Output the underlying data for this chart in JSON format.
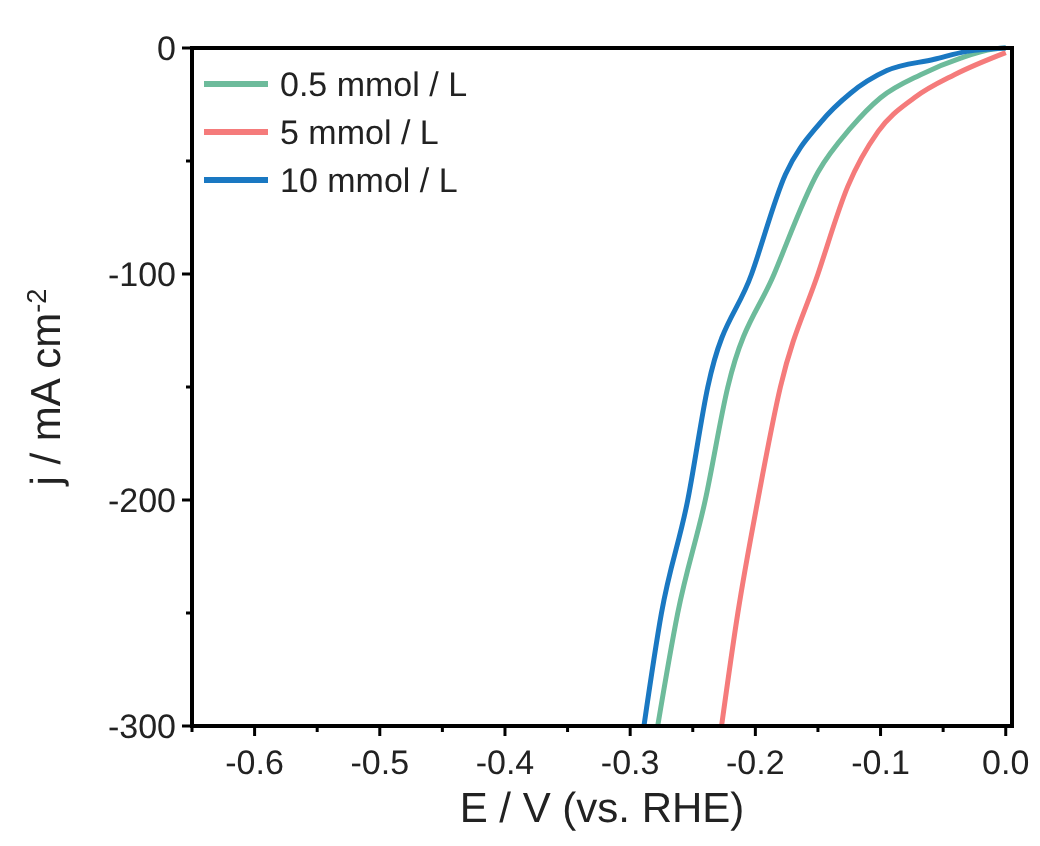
{
  "chart_data": {
    "type": "line",
    "xlabel": "E / V (vs. RHE)",
    "ylabel": "j / mA cm$^{-2}$",
    "xlim": [
      -0.65,
      0.005
    ],
    "ylim": [
      -300,
      0
    ],
    "xticks": [
      -0.6,
      -0.5,
      -0.4,
      -0.3,
      -0.2,
      -0.1,
      {
        "value": 0,
        "label": "0.0"
      },
      {
        "value": -0.65,
        "label": null
      },
      {
        "value": -0.55,
        "label": null
      },
      {
        "value": -0.45,
        "label": null
      },
      {
        "value": -0.35,
        "label": null
      },
      {
        "value": -0.25,
        "label": null
      },
      {
        "value": -0.15,
        "label": null
      },
      {
        "value": -0.05,
        "label": null
      }
    ],
    "yticks": [
      -300,
      -200,
      -100,
      0,
      {
        "value": -250,
        "label": null
      },
      {
        "value": -150,
        "label": null
      },
      {
        "value": -50,
        "label": null
      }
    ],
    "legend": "top left",
    "grid": false,
    "line_style": "solid",
    "marker": "none",
    "series": [
      {
        "name": "0.5 mmol / L",
        "color": "#6dbb9b",
        "x": [
          -0.278,
          -0.262,
          -0.24,
          -0.222,
          -0.185,
          -0.15,
          -0.124,
          -0.1,
          -0.068,
          -0.036,
          -0.01,
          0
        ],
        "values": [
          -300,
          -250,
          -200,
          -150,
          -100,
          -55,
          -35.5,
          -22,
          -11.8,
          -4.5,
          -0.5,
          0
        ]
      },
      {
        "name": "5 mmol / L",
        "color": "#f57b7b",
        "x": [
          -0.227,
          -0.214,
          -0.198,
          -0.18,
          -0.15,
          -0.126,
          -0.102,
          -0.073,
          -0.041,
          0
        ],
        "values": [
          -300,
          -250,
          -200,
          -150,
          -100,
          -61,
          -37,
          -22,
          -11.8,
          -2
        ]
      },
      {
        "name": "10 mmol / L",
        "color": "#1a78c2",
        "x": [
          -0.289,
          -0.275,
          -0.254,
          -0.238,
          -0.203,
          -0.176,
          -0.148,
          -0.124,
          -0.095,
          -0.057,
          -0.031,
          0
        ],
        "values": [
          -300,
          -250,
          -200,
          -150,
          -100,
          -56,
          -33,
          -20,
          -10,
          -5,
          -1.5,
          0
        ]
      }
    ]
  }
}
